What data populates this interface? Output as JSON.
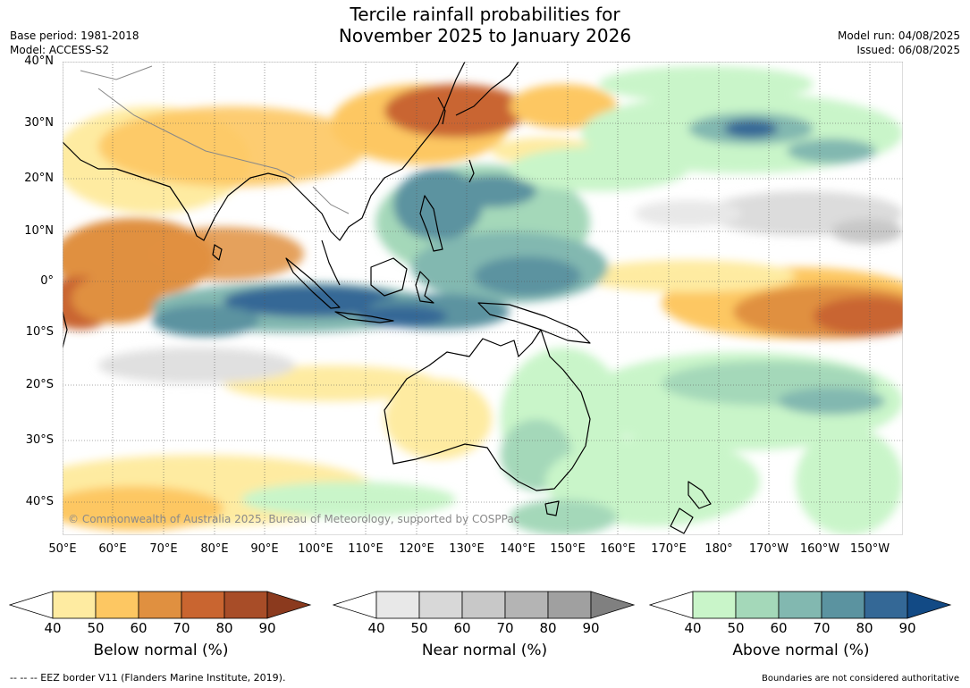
{
  "title": {
    "line1": "Tercile rainfall probabilities for",
    "line2": "November 2025 to January 2026"
  },
  "meta": {
    "base_period": "Base period: 1981-2018",
    "model": "Model: ACCESS-S2",
    "model_run": "Model run: 04/08/2025",
    "issued": "Issued: 06/08/2025"
  },
  "map": {
    "lat_labels": [
      "40°N",
      "30°N",
      "20°N",
      "10°N",
      "0°",
      "10°S",
      "20°S",
      "30°S",
      "40°S"
    ],
    "lon_labels": [
      "50°E",
      "60°E",
      "70°E",
      "80°E",
      "90°E",
      "100°E",
      "110°E",
      "120°E",
      "130°E",
      "140°E",
      "150°E",
      "160°E",
      "170°E",
      "180°",
      "170°W",
      "160°W",
      "150°W"
    ],
    "copyright": "© Commonwealth of Australia 2025, Bureau of Meteorology, supported by COSPPac",
    "colors": {
      "ocean_base": "#ffffff",
      "land_outline": "#000000",
      "border": "#888888"
    }
  },
  "colorbars": [
    {
      "label": "Below normal (%)",
      "ticks": [
        "40",
        "50",
        "60",
        "70",
        "80",
        "90"
      ],
      "colors": [
        "#ffffff",
        "#feeba1",
        "#fdc762",
        "#e09040",
        "#c96530",
        "#a84d28",
        "#8b3a1e"
      ]
    },
    {
      "label": "Near normal (%)",
      "ticks": [
        "40",
        "50",
        "60",
        "70",
        "80",
        "90"
      ],
      "colors": [
        "#ffffff",
        "#e8e8e8",
        "#d8d8d8",
        "#c8c8c8",
        "#b4b4b4",
        "#a0a0a0",
        "#808080"
      ]
    },
    {
      "label": "Above normal (%)",
      "ticks": [
        "40",
        "50",
        "60",
        "70",
        "80",
        "90"
      ],
      "colors": [
        "#ffffff",
        "#c9f5c9",
        "#a4d8b9",
        "#82b8b0",
        "#5b93a0",
        "#346896",
        "#124a85"
      ]
    }
  ],
  "footer": {
    "eez_note": "--  --  -- EEZ border V11 (Flanders Marine Institute, 2019).",
    "disclaimer": "Boundaries are not considered authoritative"
  }
}
